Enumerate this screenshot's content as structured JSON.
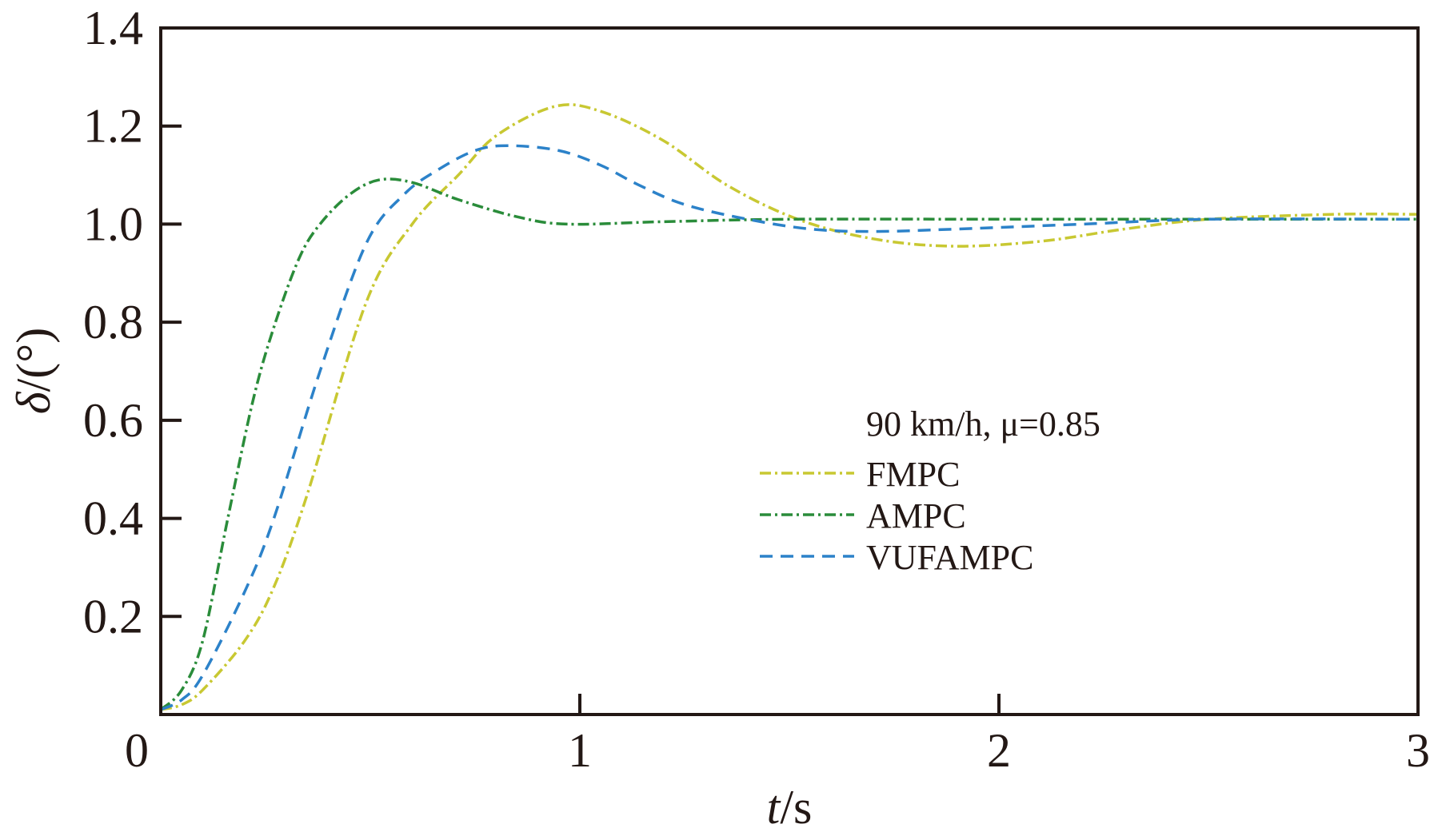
{
  "chart_data": {
    "type": "line",
    "title": "",
    "xlabel_italic": "t",
    "xlabel_unit": "/s",
    "ylabel_italic": "δ",
    "ylabel_unit": "/(°)",
    "xlim": [
      0,
      3
    ],
    "ylim": [
      0,
      1.4
    ],
    "xticks": [
      "0",
      "1",
      "2",
      "3"
    ],
    "xtick_values": [
      0,
      1,
      2,
      3
    ],
    "yticks": [
      "0.2",
      "0.4",
      "0.6",
      "0.8",
      "1.0",
      "1.2",
      "1.4"
    ],
    "ytick_values": [
      0.2,
      0.4,
      0.6,
      0.8,
      1.0,
      1.2,
      1.4
    ],
    "grid": false,
    "legend_position": "center-right",
    "legend_title": "90 km/h, μ=0.85",
    "series": [
      {
        "name": "FMPC",
        "color": "#c8c832",
        "dash": "dashdot",
        "x": [
          0,
          0.05,
          0.1,
          0.2,
          0.27,
          0.35,
          0.49,
          0.6,
          0.71,
          0.8,
          0.94,
          1.05,
          1.2,
          1.35,
          1.52,
          1.7,
          1.89,
          2.1,
          2.3,
          2.5,
          2.8,
          3.0
        ],
        "y": [
          0.01,
          0.02,
          0.05,
          0.15,
          0.26,
          0.45,
          0.84,
          1.0,
          1.1,
          1.18,
          1.24,
          1.23,
          1.17,
          1.08,
          1.01,
          0.97,
          0.955,
          0.965,
          0.99,
          1.01,
          1.02,
          1.02
        ]
      },
      {
        "name": "AMPC",
        "color": "#2a8c3a",
        "dash": "dashdot",
        "x": [
          0,
          0.05,
          0.1,
          0.16,
          0.22,
          0.27,
          0.33,
          0.38,
          0.45,
          0.52,
          0.6,
          0.71,
          0.85,
          0.97,
          1.2,
          1.5,
          2.0,
          2.5,
          3.0
        ],
        "y": [
          0.01,
          0.05,
          0.15,
          0.4,
          0.64,
          0.79,
          0.93,
          1.0,
          1.06,
          1.09,
          1.085,
          1.05,
          1.015,
          1.0,
          1.005,
          1.01,
          1.01,
          1.01,
          1.01
        ]
      },
      {
        "name": "VUFAMPC",
        "color": "#2c82c9",
        "dash": "dashed",
        "x": [
          0,
          0.05,
          0.1,
          0.2,
          0.27,
          0.38,
          0.49,
          0.58,
          0.66,
          0.75,
          0.83,
          0.95,
          1.05,
          1.14,
          1.25,
          1.4,
          1.55,
          1.7,
          1.9,
          2.2,
          2.5,
          3.0
        ],
        "y": [
          0.01,
          0.03,
          0.08,
          0.25,
          0.4,
          0.7,
          0.96,
          1.06,
          1.11,
          1.15,
          1.16,
          1.15,
          1.12,
          1.08,
          1.04,
          1.01,
          0.99,
          0.985,
          0.99,
          1.0,
          1.01,
          1.01
        ]
      }
    ]
  }
}
